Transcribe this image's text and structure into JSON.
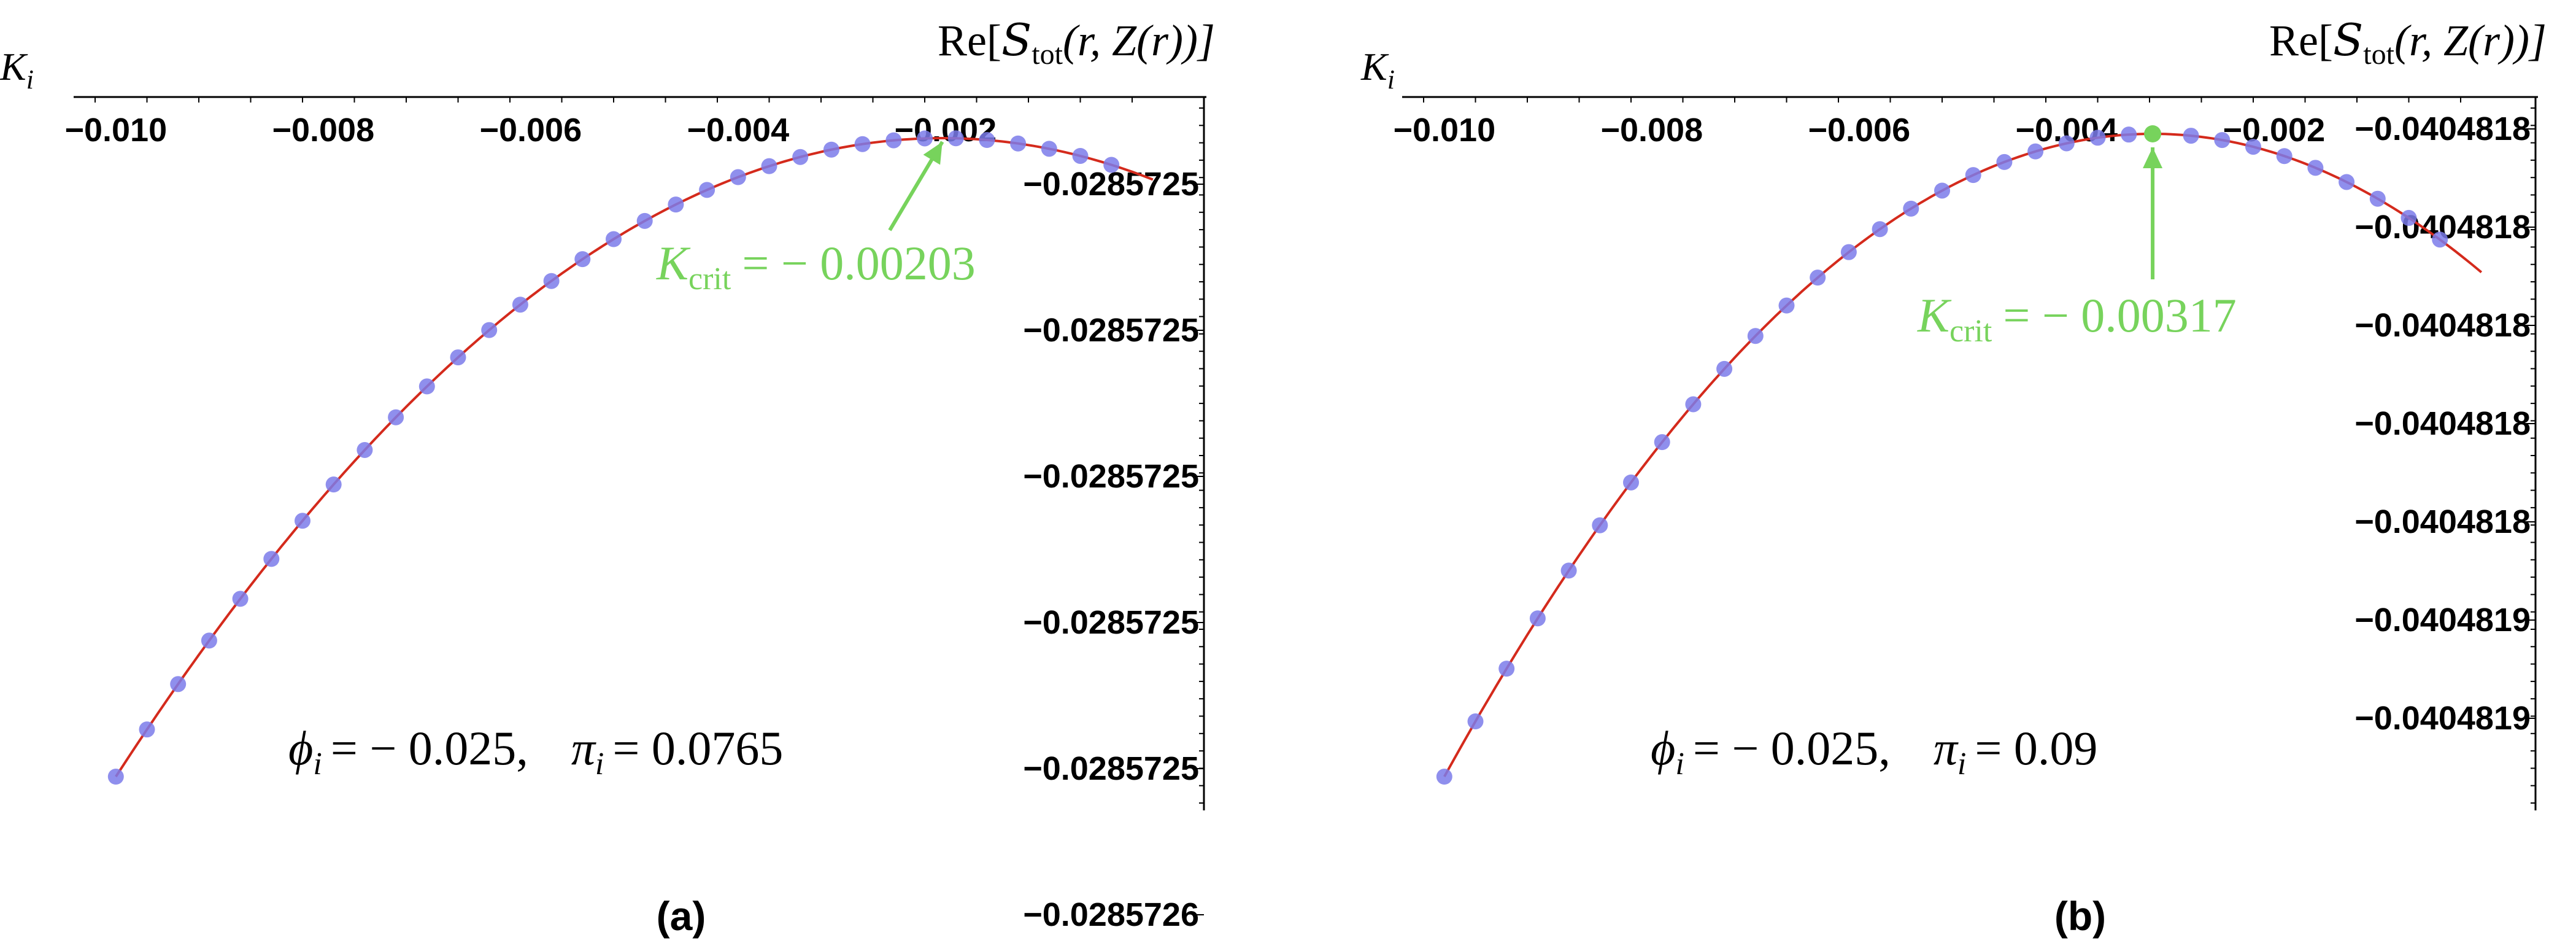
{
  "colors": {
    "curve": "#d42a1c",
    "points": "#7b7bea",
    "critical": "#77d35c",
    "axis": "#000000"
  },
  "chart_data": [
    {
      "type": "scatter",
      "panel_label": "(a)",
      "ylabel_var": "K",
      "ylabel_sub": "i",
      "xlabel_pre": "Re[",
      "xlabel_S": "S",
      "xlabel_sub": "tot",
      "xlabel_post": "(r, Z(r))]",
      "x_ticks": [
        "−0.010",
        "−0.008",
        "−0.006",
        "−0.004",
        "−0.002"
      ],
      "x_tick_values": [
        -0.01,
        -0.008,
        -0.006,
        -0.004,
        -0.002
      ],
      "y_ticks": [
        "−0.0285725",
        "−0.0285725",
        "−0.0285725",
        "−0.0285725",
        "−0.0285725",
        "−0.0285726"
      ],
      "xlim": [
        -0.0102,
        -0.0002
      ],
      "curve": {
        "a": -0.001,
        "b": 0.00203
      },
      "points_x": [
        -0.01,
        -0.0097,
        -0.0094,
        -0.0091,
        -0.0088,
        -0.0085,
        -0.0082,
        -0.0079,
        -0.0076,
        -0.0073,
        -0.007,
        -0.0067,
        -0.0064,
        -0.0061,
        -0.0058,
        -0.0055,
        -0.0052,
        -0.0049,
        -0.0046,
        -0.0043,
        -0.004,
        -0.0037,
        -0.0034,
        -0.0031,
        -0.0028,
        -0.0025,
        -0.0022,
        -0.0019,
        -0.0016,
        -0.0013,
        -0.001,
        -0.0007,
        -0.0004
      ],
      "critical": {
        "x": -0.00203,
        "label_var": "K",
        "label_sub": "crit",
        "label_value": "= − 0.00203",
        "show_point": false
      },
      "annotation": {
        "phi_var": "ϕ",
        "phi_sub": "i",
        "phi_value": "= − 0.025,",
        "pi_var": "π",
        "pi_sub": "i",
        "pi_value": "= 0.0765"
      }
    },
    {
      "type": "scatter",
      "panel_label": "(b)",
      "ylabel_var": "K",
      "ylabel_sub": "i",
      "xlabel_pre": "Re[",
      "xlabel_S": "S",
      "xlabel_sub": "tot",
      "xlabel_post": "(r, Z(r))]",
      "x_ticks": [
        "−0.010",
        "−0.008",
        "−0.006",
        "−0.004",
        "−0.002"
      ],
      "x_tick_values": [
        -0.01,
        -0.008,
        -0.006,
        -0.004,
        -0.002
      ],
      "y_ticks": [
        "−0.0404818",
        "−0.0404818",
        "−0.0404818",
        "−0.0404818",
        "−0.0404818",
        "−0.0404819",
        "−0.0404819"
      ],
      "xlim": [
        -0.0102,
        -0.0002
      ],
      "curve": {
        "a": -0.001,
        "b": 0.00317
      },
      "points_x": [
        -0.01,
        -0.0097,
        -0.0094,
        -0.0091,
        -0.0088,
        -0.0085,
        -0.0082,
        -0.0079,
        -0.0076,
        -0.0073,
        -0.007,
        -0.0067,
        -0.0064,
        -0.0061,
        -0.0058,
        -0.0055,
        -0.0052,
        -0.0049,
        -0.0046,
        -0.0043,
        -0.004,
        -0.0037,
        -0.0034,
        -0.0028,
        -0.0025,
        -0.0022,
        -0.0019,
        -0.0016,
        -0.0013,
        -0.001,
        -0.0007,
        -0.0004
      ],
      "critical": {
        "x": -0.00317,
        "label_var": "K",
        "label_sub": "crit",
        "label_value": "= − 0.00317",
        "show_point": true
      },
      "annotation": {
        "phi_var": "ϕ",
        "phi_sub": "i",
        "phi_value": "= − 0.025,",
        "pi_var": "π",
        "pi_sub": "i",
        "pi_value": "= 0.09"
      }
    }
  ]
}
